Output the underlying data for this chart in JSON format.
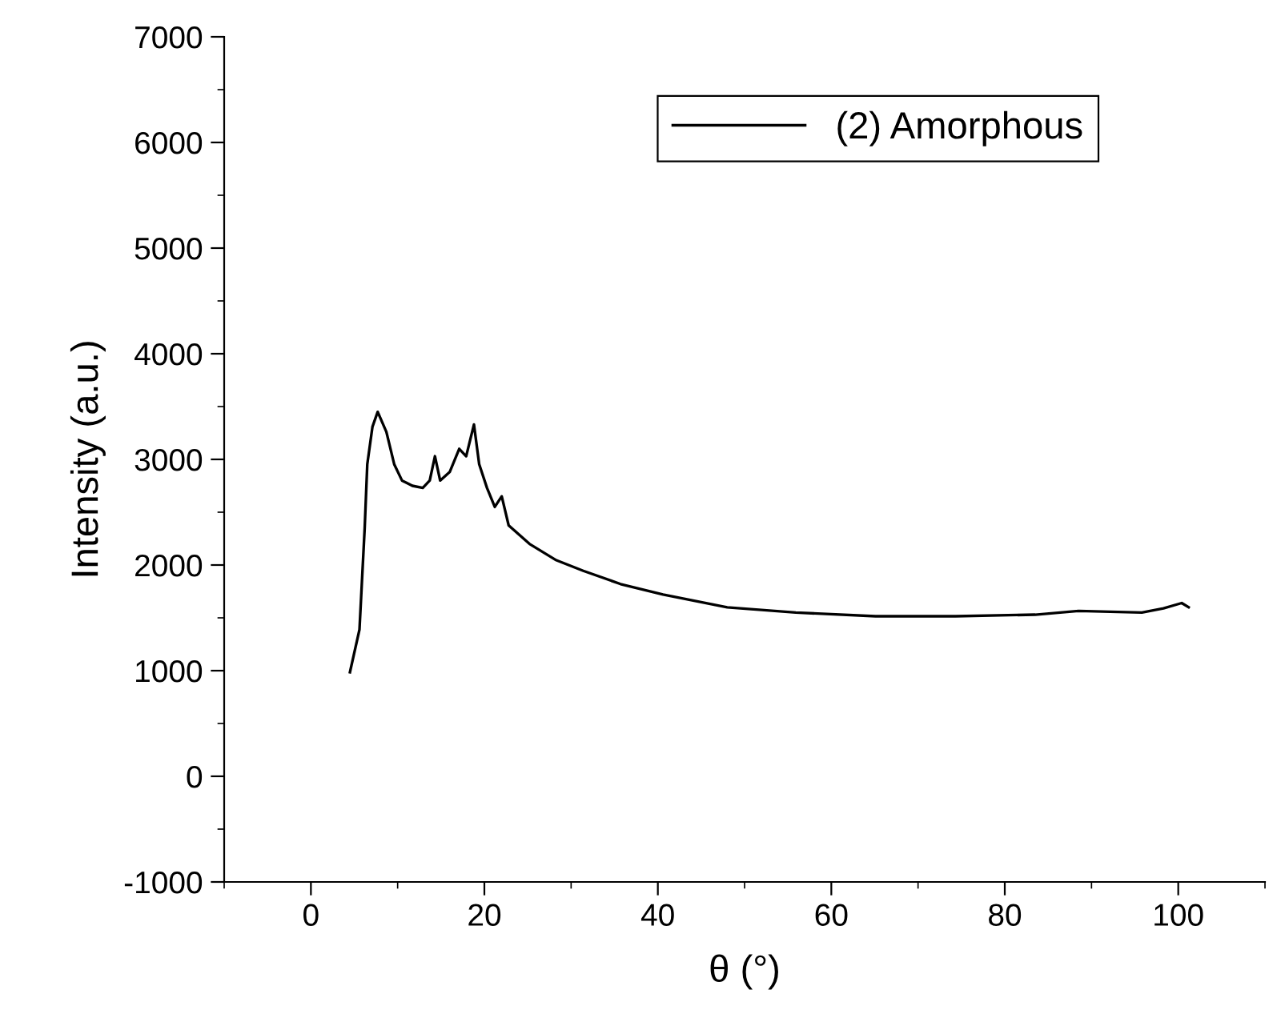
{
  "chart_data": {
    "type": "line",
    "xlabel": "θ (°)",
    "ylabel": "Intensity (a.u.)",
    "xlim": [
      -10,
      110
    ],
    "xticks": [
      0,
      20,
      40,
      60,
      80,
      100
    ],
    "ylim": [
      -1000,
      7000
    ],
    "yticks": [
      -1000,
      0,
      1000,
      2000,
      3000,
      4000,
      5000,
      6000,
      7000
    ],
    "grid": false,
    "legend": "top right",
    "marker": "none",
    "line_style": "solid",
    "series": [
      {
        "name": "(2) Amorphous",
        "color": "#000000",
        "x": [
          4.5,
          5.6,
          6.2,
          6.5,
          7.1,
          7.7,
          8.7,
          9.6,
          10.5,
          11.7,
          12.9,
          13.7,
          14.3,
          14.9,
          16.0,
          17.1,
          17.9,
          18.8,
          19.4,
          20.3,
          21.2,
          22.0,
          22.8,
          25.2,
          28.3,
          31.4,
          35.7,
          40.6,
          48.0,
          55.9,
          65.1,
          74.3,
          83.5,
          88.5,
          95.8,
          98.3,
          100.4,
          101.2
        ],
        "values": [
          985,
          1390,
          2350,
          2955,
          3310,
          3450,
          3260,
          2955,
          2800,
          2750,
          2730,
          2800,
          3030,
          2800,
          2880,
          3100,
          3030,
          3330,
          2955,
          2730,
          2550,
          2650,
          2375,
          2200,
          2045,
          1945,
          1820,
          1720,
          1600,
          1550,
          1515,
          1515,
          1530,
          1565,
          1550,
          1590,
          1640,
          1600
        ]
      }
    ]
  }
}
